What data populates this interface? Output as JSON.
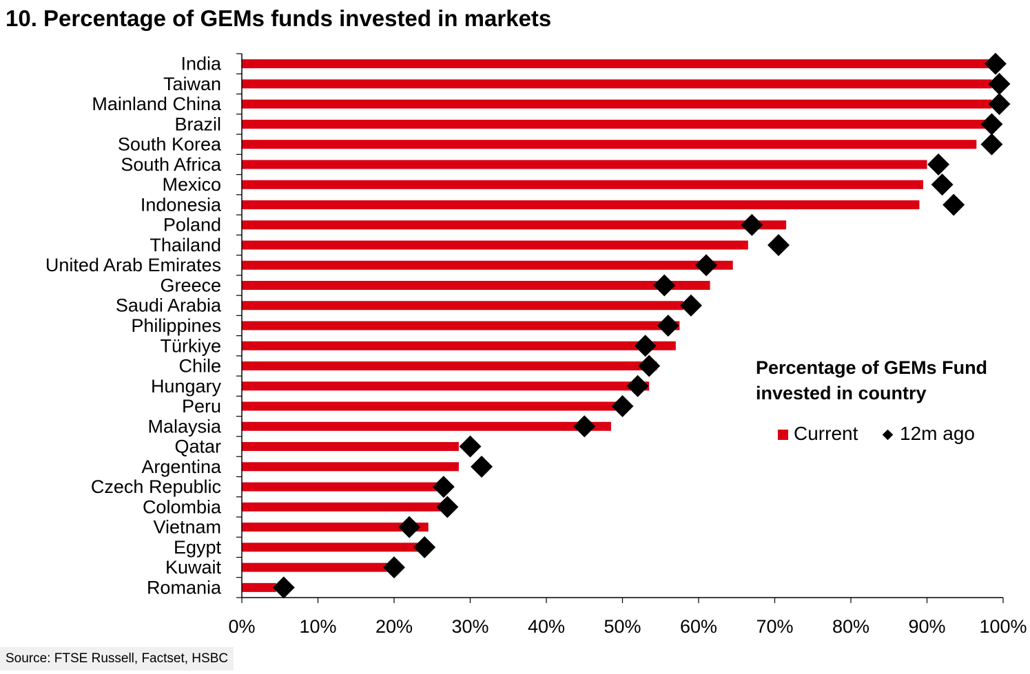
{
  "title": "10. Percentage of GEMs funds invested in markets",
  "source": "Source: FTSE Russell, Factset, HSBC",
  "legend": {
    "title": "Percentage of GEMs Fund invested in country",
    "current_label": "Current",
    "ago_label": "12m ago"
  },
  "colors": {
    "current": "#db0011",
    "ago": "#000000"
  },
  "chart_data": {
    "type": "bar",
    "orientation": "horizontal",
    "categories": [
      "India",
      "Taiwan",
      "Mainland China",
      "Brazil",
      "South Korea",
      "South Africa",
      "Mexico",
      "Indonesia",
      "Poland",
      "Thailand",
      "United Arab Emirates",
      "Greece",
      "Saudi Arabia",
      "Philippines",
      "Türkiye",
      "Chile",
      "Hungary",
      "Peru",
      "Malaysia",
      "Qatar",
      "Argentina",
      "Czech Republic",
      "Colombia",
      "Vietnam",
      "Egypt",
      "Kuwait",
      "Romania"
    ],
    "series": [
      {
        "name": "Current",
        "marker": "bar",
        "values": [
          98.5,
          98.5,
          98.5,
          98,
          96.5,
          90,
          89.5,
          89,
          71.5,
          66.5,
          64.5,
          61.5,
          58,
          57.5,
          57,
          54.5,
          53.5,
          50.5,
          48.5,
          28.5,
          28.5,
          27,
          26.5,
          24.5,
          23.5,
          20,
          4.5
        ]
      },
      {
        "name": "12m ago",
        "marker": "diamond",
        "values": [
          99,
          99.5,
          99.5,
          98.5,
          98.5,
          91.5,
          92,
          93.5,
          67,
          70.5,
          61,
          55.5,
          59,
          56,
          53,
          53.5,
          52,
          50,
          45,
          30,
          31.5,
          26.5,
          27,
          22,
          24,
          20,
          5.5
        ]
      }
    ],
    "xlim": [
      0,
      100
    ],
    "xticks": [
      "0%",
      "10%",
      "20%",
      "30%",
      "40%",
      "50%",
      "60%",
      "70%",
      "80%",
      "90%",
      "100%"
    ],
    "grid": false,
    "legend_position": "right"
  }
}
